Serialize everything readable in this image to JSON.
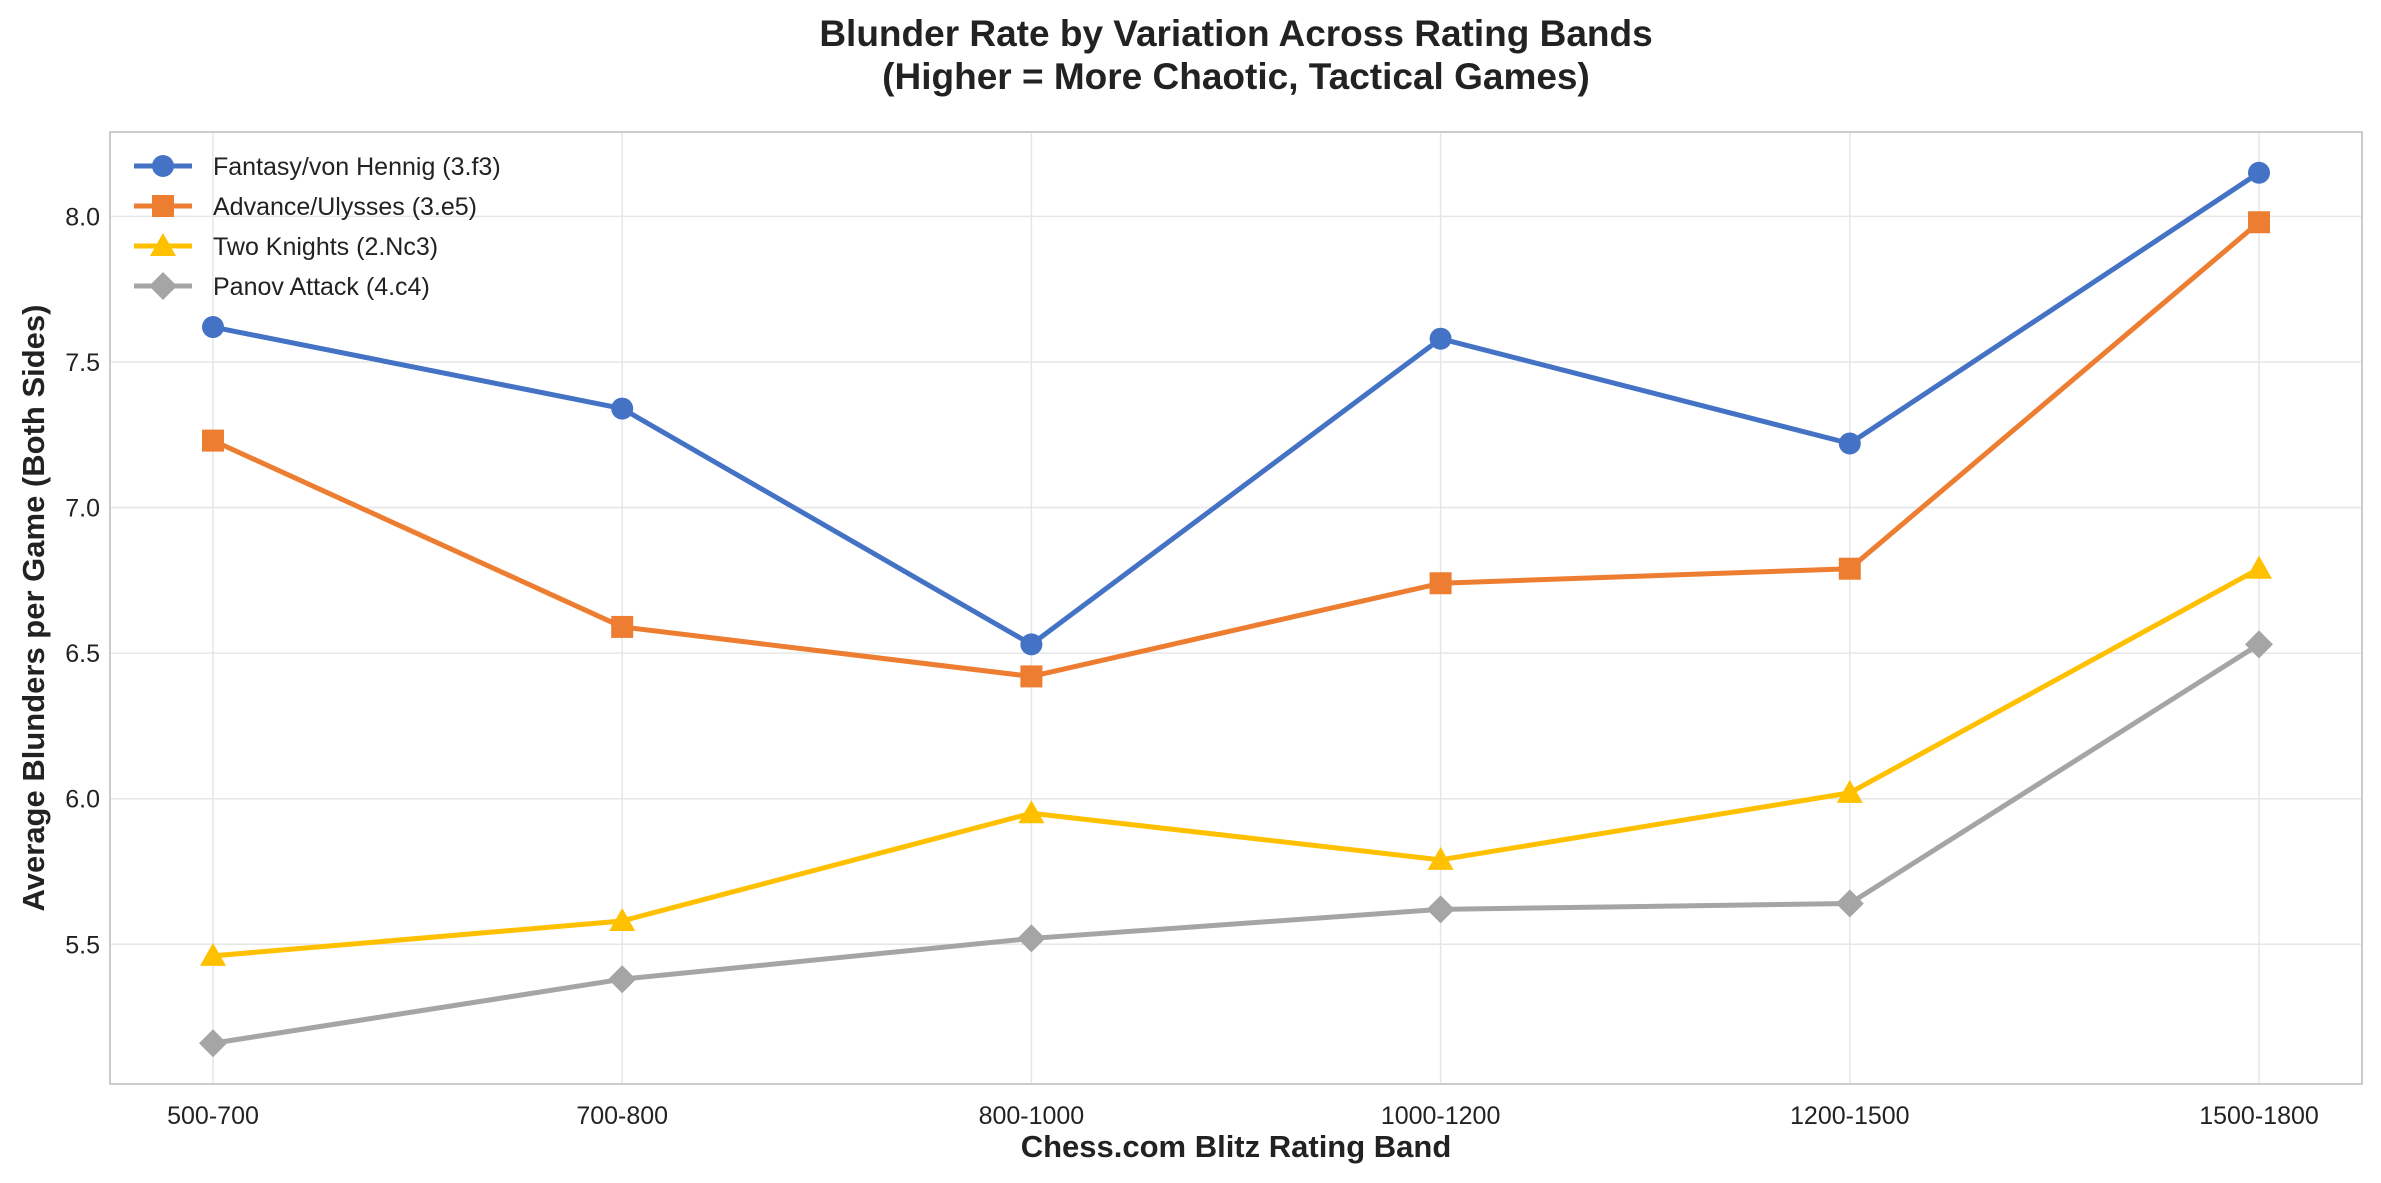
{
  "chart_data": {
    "type": "line",
    "title_line1": "Blunder Rate by Variation Across Rating Bands",
    "title_line2": "(Higher = More Chaotic, Tactical Games)",
    "xlabel": "Chess.com Blitz Rating Band",
    "ylabel": "Average Blunders per Game (Both Sides)",
    "categories": [
      "500-700",
      "700-800",
      "800-1000",
      "1000-1200",
      "1200-1500",
      "1500-1800"
    ],
    "ylim": [
      5.02,
      8.29
    ],
    "yticks": [
      5.5,
      6.0,
      6.5,
      7.0,
      7.5,
      8.0
    ],
    "grid": true,
    "legend_position": "top-left",
    "series": [
      {
        "name": "Fantasy/von Hennig (3.f3)",
        "values": [
          7.62,
          7.34,
          6.53,
          7.58,
          7.22,
          8.15
        ],
        "color": "#4472C4",
        "marker": "circle"
      },
      {
        "name": "Advance/Ulysses (3.e5)",
        "values": [
          7.23,
          6.59,
          6.42,
          6.74,
          6.79,
          7.98
        ],
        "color": "#ED7D31",
        "marker": "square"
      },
      {
        "name": "Two Knights (2.Nc3)",
        "values": [
          5.46,
          5.58,
          5.95,
          5.79,
          6.02,
          6.79
        ],
        "color": "#FFC000",
        "marker": "triangle"
      },
      {
        "name": "Panov Attack (4.c4)",
        "values": [
          5.16,
          5.38,
          5.52,
          5.62,
          5.64,
          6.53
        ],
        "color": "#A5A5A5",
        "marker": "diamond"
      }
    ]
  }
}
